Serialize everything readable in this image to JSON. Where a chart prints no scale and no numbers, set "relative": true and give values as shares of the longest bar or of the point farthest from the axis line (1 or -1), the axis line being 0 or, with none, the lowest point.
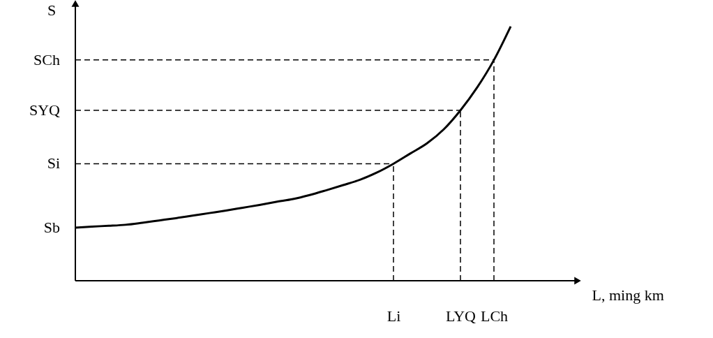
{
  "chart_data": {
    "type": "line",
    "relative": true,
    "xlabel": "L, ming km",
    "ylabel": "S",
    "categories": [
      null,
      null,
      null,
      null,
      null,
      null,
      null,
      null,
      null,
      null,
      null,
      null,
      null,
      null,
      null,
      null,
      null,
      null,
      null,
      "Li",
      null,
      null,
      null,
      "LYQ",
      null,
      "LCh",
      null
    ],
    "series": [
      {
        "color": "#000000",
        "values": [
          0.209,
          0.213,
          0.216,
          0.22,
          0.228,
          0.237,
          0.246,
          0.256,
          0.266,
          0.276,
          0.287,
          0.298,
          0.31,
          0.321,
          0.337,
          0.356,
          0.376,
          0.397,
          0.425,
          0.46,
          0.5,
          0.54,
          0.595,
          0.67,
          0.76,
          0.868,
          1
        ]
      }
    ],
    "ref_lines": [
      {
        "axis": "y",
        "value": 0.46,
        "label": "Si",
        "line_style": "dashed"
      },
      {
        "axis": "y",
        "value": 0.67,
        "label": "SYQ",
        "line_style": "dashed"
      },
      {
        "axis": "y",
        "value": 0.868,
        "label": "SCh",
        "line_style": "dashed"
      },
      {
        "axis": "x",
        "value": "Li",
        "line_style": "dashed"
      },
      {
        "axis": "x",
        "value": "LYQ",
        "line_style": "dashed"
      },
      {
        "axis": "x",
        "value": "LCh",
        "line_style": "dashed"
      }
    ],
    "annotations": [
      "Sb"
    ],
    "grid": false,
    "marker": "none",
    "line_style": "solid"
  }
}
